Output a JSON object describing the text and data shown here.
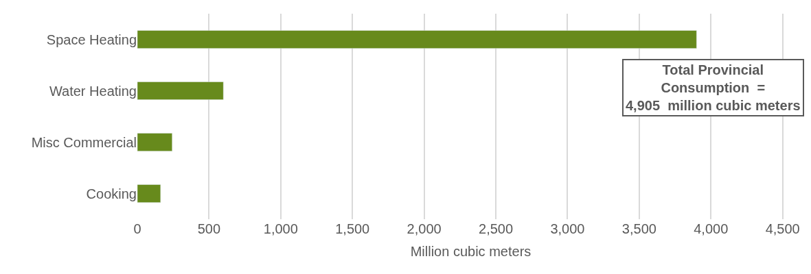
{
  "chart_data": {
    "type": "bar",
    "orientation": "horizontal",
    "categories": [
      "Space Heating",
      "Water Heating",
      "Misc Commercial",
      "Cooking"
    ],
    "values": [
      3900,
      600,
      243,
      162
    ],
    "color": "#678a1c",
    "xlabel": "Million cubic meters",
    "xlim": [
      0,
      4650
    ],
    "xticks": [
      {
        "value": 0,
        "label": "0"
      },
      {
        "value": 500,
        "label": "500"
      },
      {
        "value": 1000,
        "label": "1,000"
      },
      {
        "value": 1500,
        "label": "1,500"
      },
      {
        "value": 2000,
        "label": "2,000"
      },
      {
        "value": 2500,
        "label": "2,500"
      },
      {
        "value": 3000,
        "label": "3,000"
      },
      {
        "value": 3500,
        "label": "3,500"
      },
      {
        "value": 4000,
        "label": "4,000"
      },
      {
        "value": 4500,
        "label": "4,500"
      }
    ],
    "grid": "x",
    "annotations": [
      "Total Provincial\nConsumption  =\n4,905  million cubic meters"
    ]
  }
}
